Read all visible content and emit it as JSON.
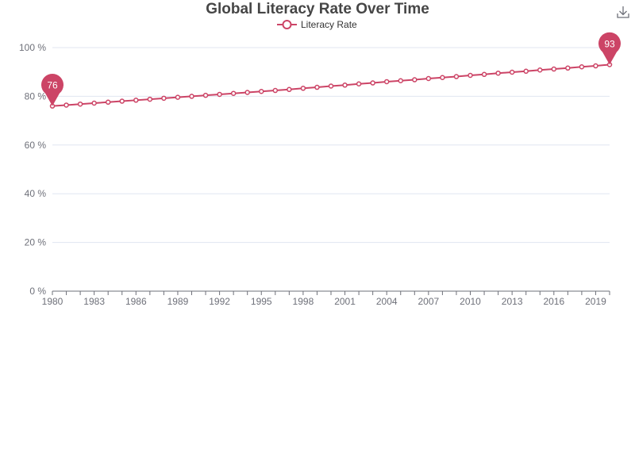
{
  "chart_data": {
    "type": "line",
    "title": "Global Literacy Rate Over Time",
    "xlabel": "",
    "ylabel": "",
    "legend": [
      "Literacy Rate"
    ],
    "legend_position": "top-center",
    "grid": true,
    "ylim": [
      0,
      100
    ],
    "yticks": [
      "0 %",
      "20 %",
      "40 %",
      "60 %",
      "80 %",
      "100 %"
    ],
    "xticks": [
      "1980",
      "1983",
      "1986",
      "1989",
      "1992",
      "1995",
      "1998",
      "2001",
      "2004",
      "2007",
      "2010",
      "2013",
      "2016",
      "2019"
    ],
    "x": [
      1980,
      1981,
      1982,
      1983,
      1984,
      1985,
      1986,
      1987,
      1988,
      1989,
      1990,
      1991,
      1992,
      1993,
      1994,
      1995,
      1996,
      1997,
      1998,
      1999,
      2000,
      2001,
      2002,
      2003,
      2004,
      2005,
      2006,
      2007,
      2008,
      2009,
      2010,
      2011,
      2012,
      2013,
      2014,
      2015,
      2016,
      2017,
      2018,
      2019,
      2020
    ],
    "series": [
      {
        "name": "Literacy Rate",
        "color": "#cc4466",
        "values": [
          76.0,
          76.4,
          76.8,
          77.2,
          77.6,
          78.0,
          78.4,
          78.8,
          79.2,
          79.6,
          80.0,
          80.4,
          80.8,
          81.2,
          81.6,
          82.0,
          82.4,
          82.8,
          83.3,
          83.7,
          84.2,
          84.6,
          85.1,
          85.5,
          86.0,
          86.4,
          86.8,
          87.3,
          87.7,
          88.1,
          88.6,
          89.0,
          89.5,
          89.9,
          90.3,
          90.8,
          91.2,
          91.6,
          92.1,
          92.5,
          93.0
        ]
      }
    ],
    "markers": [
      {
        "label": "76",
        "type": "min"
      },
      {
        "label": "93",
        "type": "max"
      }
    ]
  },
  "toolbar": {
    "save_icon": "download-icon"
  }
}
